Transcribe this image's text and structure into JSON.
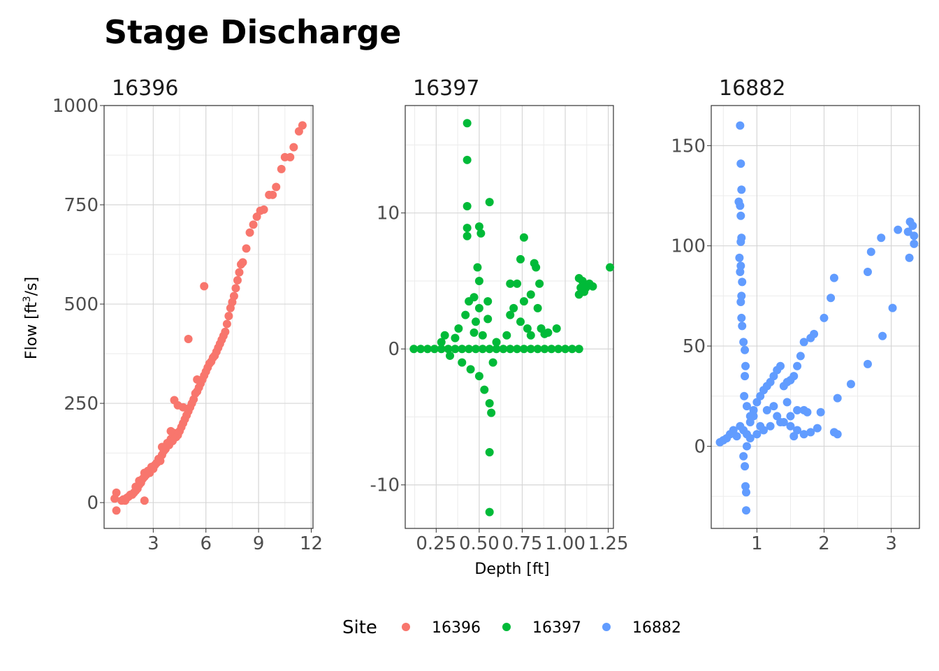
{
  "chart_data": {
    "type": "scatter",
    "title": "Stage Discharge",
    "xlabel": "Depth [ft]",
    "ylabel": "Flow [ft3/s]",
    "grid": true,
    "legend": {
      "title": "Site",
      "position": "bottom",
      "entries": [
        {
          "label": "16396",
          "color": "#F8766D"
        },
        {
          "label": "16397",
          "color": "#00BA38"
        },
        {
          "label": "16882",
          "color": "#619CFF"
        }
      ]
    },
    "panels": [
      {
        "name": "16396",
        "color": "#F8766D",
        "xlim": [
          0.2,
          12.1
        ],
        "ylim": [
          -65,
          1000
        ],
        "xticks": [
          3,
          6,
          9,
          12
        ],
        "xtick_labels": [
          "3",
          "6",
          "9",
          "12"
        ],
        "yticks": [
          0,
          250,
          500,
          750,
          1000
        ],
        "ytick_labels": [
          "0",
          "250",
          "500",
          "750",
          "1000"
        ],
        "points": [
          [
            0.8,
            10
          ],
          [
            0.9,
            25
          ],
          [
            0.9,
            -20
          ],
          [
            1.2,
            5
          ],
          [
            1.3,
            8
          ],
          [
            1.4,
            5
          ],
          [
            1.5,
            12
          ],
          [
            1.6,
            15
          ],
          [
            1.7,
            20
          ],
          [
            1.8,
            20
          ],
          [
            1.9,
            25
          ],
          [
            2.0,
            30
          ],
          [
            2.0,
            40
          ],
          [
            2.1,
            35
          ],
          [
            2.2,
            45
          ],
          [
            2.2,
            55
          ],
          [
            2.3,
            50
          ],
          [
            2.4,
            60
          ],
          [
            2.5,
            65
          ],
          [
            2.5,
            75
          ],
          [
            2.6,
            70
          ],
          [
            2.7,
            80
          ],
          [
            2.8,
            75
          ],
          [
            2.9,
            90
          ],
          [
            3.0,
            85
          ],
          [
            3.1,
            95
          ],
          [
            3.2,
            100
          ],
          [
            3.3,
            110
          ],
          [
            3.4,
            105
          ],
          [
            3.5,
            120
          ],
          [
            3.5,
            140
          ],
          [
            3.6,
            130
          ],
          [
            3.7,
            135
          ],
          [
            3.8,
            150
          ],
          [
            3.9,
            145
          ],
          [
            4.0,
            160
          ],
          [
            4.1,
            155
          ],
          [
            4.2,
            175
          ],
          [
            4.3,
            165
          ],
          [
            4.4,
            170
          ],
          [
            4.5,
            180
          ],
          [
            4.6,
            190
          ],
          [
            4.7,
            200
          ],
          [
            4.8,
            210
          ],
          [
            4.9,
            220
          ],
          [
            5.0,
            230
          ],
          [
            5.1,
            240
          ],
          [
            5.2,
            250
          ],
          [
            5.3,
            260
          ],
          [
            5.4,
            275
          ],
          [
            5.5,
            280
          ],
          [
            5.6,
            290
          ],
          [
            5.7,
            300
          ],
          [
            5.8,
            310
          ],
          [
            5.9,
            320
          ],
          [
            6.0,
            330
          ],
          [
            6.1,
            340
          ],
          [
            6.2,
            350
          ],
          [
            6.3,
            355
          ],
          [
            6.4,
            365
          ],
          [
            6.5,
            370
          ],
          [
            6.6,
            380
          ],
          [
            6.7,
            390
          ],
          [
            6.8,
            400
          ],
          [
            6.9,
            410
          ],
          [
            7.0,
            420
          ],
          [
            7.1,
            430
          ],
          [
            7.2,
            450
          ],
          [
            7.3,
            470
          ],
          [
            7.4,
            490
          ],
          [
            7.5,
            505
          ],
          [
            7.6,
            520
          ],
          [
            7.7,
            540
          ],
          [
            7.8,
            560
          ],
          [
            7.9,
            580
          ],
          [
            8.0,
            600
          ],
          [
            8.1,
            605
          ],
          [
            8.3,
            640
          ],
          [
            8.5,
            680
          ],
          [
            8.7,
            700
          ],
          [
            8.9,
            720
          ],
          [
            9.1,
            735
          ],
          [
            9.3,
            738
          ],
          [
            9.6,
            775
          ],
          [
            9.8,
            775
          ],
          [
            10.0,
            795
          ],
          [
            10.3,
            840
          ],
          [
            10.5,
            870
          ],
          [
            10.8,
            870
          ],
          [
            11.0,
            895
          ],
          [
            11.3,
            935
          ],
          [
            11.5,
            950
          ],
          [
            2.5,
            5
          ],
          [
            4.2,
            258
          ],
          [
            4.4,
            245
          ],
          [
            5.0,
            412
          ],
          [
            5.9,
            545
          ],
          [
            4.0,
            180
          ],
          [
            4.7,
            240
          ],
          [
            5.5,
            310
          ]
        ]
      },
      {
        "name": "16397",
        "color": "#00BA38",
        "xlim": [
          0.07,
          1.28
        ],
        "ylim": [
          -13.2,
          17.9
        ],
        "xticks": [
          0.25,
          0.5,
          0.75,
          1.0,
          1.25
        ],
        "xtick_labels": [
          "0.25",
          "0.50",
          "0.75",
          "1.00",
          "1.25"
        ],
        "yticks": [
          -10,
          0,
          10
        ],
        "ytick_labels": [
          "-10",
          "0",
          "10"
        ],
        "points": [
          [
            0.12,
            0
          ],
          [
            0.16,
            0
          ],
          [
            0.2,
            0
          ],
          [
            0.24,
            0
          ],
          [
            0.28,
            0
          ],
          [
            0.32,
            0
          ],
          [
            0.36,
            0
          ],
          [
            0.4,
            0
          ],
          [
            0.44,
            0
          ],
          [
            0.48,
            0
          ],
          [
            0.52,
            0
          ],
          [
            0.56,
            0
          ],
          [
            0.6,
            0
          ],
          [
            0.64,
            0
          ],
          [
            0.68,
            0
          ],
          [
            0.72,
            0
          ],
          [
            0.76,
            0
          ],
          [
            0.8,
            0
          ],
          [
            0.84,
            0
          ],
          [
            0.88,
            0
          ],
          [
            0.92,
            0
          ],
          [
            0.96,
            0
          ],
          [
            1.0,
            0
          ],
          [
            1.04,
            0
          ],
          [
            1.08,
            0
          ],
          [
            0.28,
            0.5
          ],
          [
            0.3,
            1
          ],
          [
            0.33,
            -0.5
          ],
          [
            0.36,
            0.8
          ],
          [
            0.38,
            1.5
          ],
          [
            0.4,
            -1
          ],
          [
            0.42,
            2.5
          ],
          [
            0.44,
            3.5
          ],
          [
            0.45,
            -1.5
          ],
          [
            0.47,
            1.2
          ],
          [
            0.48,
            2
          ],
          [
            0.5,
            3
          ],
          [
            0.5,
            -2
          ],
          [
            0.52,
            1
          ],
          [
            0.53,
            -3
          ],
          [
            0.55,
            2.2
          ],
          [
            0.56,
            -4
          ],
          [
            0.57,
            -4.7
          ],
          [
            0.58,
            -1
          ],
          [
            0.6,
            0.5
          ],
          [
            0.43,
            16.6
          ],
          [
            0.43,
            13.9
          ],
          [
            0.43,
            10.5
          ],
          [
            0.43,
            8.9
          ],
          [
            0.43,
            8.3
          ],
          [
            0.56,
            10.8
          ],
          [
            0.5,
            9
          ],
          [
            0.51,
            8.5
          ],
          [
            0.49,
            6
          ],
          [
            0.5,
            5
          ],
          [
            0.56,
            -7.6
          ],
          [
            0.56,
            -12
          ],
          [
            0.47,
            3.8
          ],
          [
            0.55,
            3.5
          ],
          [
            0.66,
            1
          ],
          [
            0.68,
            2.5
          ],
          [
            0.7,
            3
          ],
          [
            0.72,
            4.8
          ],
          [
            0.74,
            2
          ],
          [
            0.76,
            3.5
          ],
          [
            0.78,
            1.5
          ],
          [
            0.8,
            4
          ],
          [
            0.82,
            6.3
          ],
          [
            0.84,
            3
          ],
          [
            0.86,
            1.5
          ],
          [
            0.9,
            1.2
          ],
          [
            0.95,
            1.5
          ],
          [
            0.74,
            6.6
          ],
          [
            0.76,
            8.2
          ],
          [
            0.83,
            6
          ],
          [
            0.85,
            4.8
          ],
          [
            0.68,
            4.8
          ],
          [
            0.8,
            1
          ],
          [
            0.88,
            1.1
          ],
          [
            1.08,
            4
          ],
          [
            1.09,
            4.5
          ],
          [
            1.1,
            5
          ],
          [
            1.12,
            4.5
          ],
          [
            1.14,
            4.8
          ],
          [
            1.16,
            4.6
          ],
          [
            1.08,
            5.2
          ],
          [
            1.11,
            4.2
          ],
          [
            1.26,
            6
          ]
        ]
      },
      {
        "name": "16882",
        "color": "#619CFF",
        "xlim": [
          0.32,
          3.42
        ],
        "ylim": [
          -41,
          170
        ],
        "xticks": [
          1,
          2,
          3
        ],
        "xtick_labels": [
          "1",
          "2",
          "3"
        ],
        "yticks": [
          0,
          50,
          100,
          150
        ],
        "ytick_labels": [
          "0",
          "50",
          "100",
          "150"
        ],
        "points": [
          [
            0.45,
            2
          ],
          [
            0.5,
            3
          ],
          [
            0.55,
            4
          ],
          [
            0.6,
            6
          ],
          [
            0.65,
            8
          ],
          [
            0.7,
            5
          ],
          [
            0.75,
            10
          ],
          [
            0.8,
            8
          ],
          [
            0.85,
            6
          ],
          [
            0.9,
            12
          ],
          [
            0.95,
            18
          ],
          [
            1.0,
            22
          ],
          [
            1.05,
            25
          ],
          [
            1.1,
            28
          ],
          [
            1.15,
            30
          ],
          [
            1.2,
            32
          ],
          [
            1.25,
            35
          ],
          [
            1.3,
            38
          ],
          [
            1.35,
            40
          ],
          [
            1.4,
            30
          ],
          [
            1.45,
            32
          ],
          [
            1.5,
            33
          ],
          [
            1.55,
            35
          ],
          [
            1.6,
            40
          ],
          [
            1.65,
            45
          ],
          [
            1.7,
            52
          ],
          [
            1.8,
            54
          ],
          [
            1.85,
            56
          ],
          [
            2.0,
            64
          ],
          [
            2.1,
            74
          ],
          [
            2.15,
            84
          ],
          [
            2.65,
            87
          ],
          [
            2.7,
            97
          ],
          [
            2.85,
            104
          ],
          [
            3.1,
            108
          ],
          [
            3.25,
            107
          ],
          [
            3.28,
            112
          ],
          [
            3.32,
            110
          ],
          [
            3.34,
            105
          ],
          [
            3.34,
            101
          ],
          [
            3.27,
            94
          ],
          [
            3.02,
            69
          ],
          [
            2.87,
            55
          ],
          [
            2.65,
            41
          ],
          [
            2.4,
            31
          ],
          [
            2.2,
            24
          ],
          [
            2.2,
            6
          ],
          [
            2.15,
            7
          ],
          [
            1.9,
            9
          ],
          [
            1.8,
            7
          ],
          [
            1.7,
            6
          ],
          [
            1.6,
            8
          ],
          [
            1.5,
            10
          ],
          [
            1.4,
            12
          ],
          [
            1.3,
            15
          ],
          [
            1.2,
            10
          ],
          [
            1.1,
            8
          ],
          [
            1.0,
            6
          ],
          [
            0.9,
            4
          ],
          [
            0.85,
            0
          ],
          [
            0.8,
            -5
          ],
          [
            0.82,
            -10
          ],
          [
            0.83,
            -20
          ],
          [
            0.84,
            -23
          ],
          [
            0.84,
            -32
          ],
          [
            0.75,
            160
          ],
          [
            0.76,
            141
          ],
          [
            0.77,
            128
          ],
          [
            0.73,
            122
          ],
          [
            0.75,
            120
          ],
          [
            0.76,
            115
          ],
          [
            0.77,
            104
          ],
          [
            0.76,
            102
          ],
          [
            0.74,
            94
          ],
          [
            0.76,
            90
          ],
          [
            0.75,
            87
          ],
          [
            0.78,
            82
          ],
          [
            0.77,
            75
          ],
          [
            0.76,
            72
          ],
          [
            0.77,
            64
          ],
          [
            0.78,
            60
          ],
          [
            0.8,
            52
          ],
          [
            0.82,
            48
          ],
          [
            0.83,
            40
          ],
          [
            0.82,
            35
          ],
          [
            0.81,
            25
          ],
          [
            0.85,
            20
          ],
          [
            0.9,
            15
          ],
          [
            1.5,
            15
          ],
          [
            1.6,
            18
          ],
          [
            1.7,
            18
          ],
          [
            1.75,
            17
          ],
          [
            1.95,
            17
          ],
          [
            1.55,
            5
          ],
          [
            1.25,
            20
          ],
          [
            1.35,
            12
          ],
          [
            1.45,
            22
          ],
          [
            1.05,
            10
          ],
          [
            0.95,
            15
          ],
          [
            1.15,
            18
          ]
        ]
      }
    ]
  }
}
